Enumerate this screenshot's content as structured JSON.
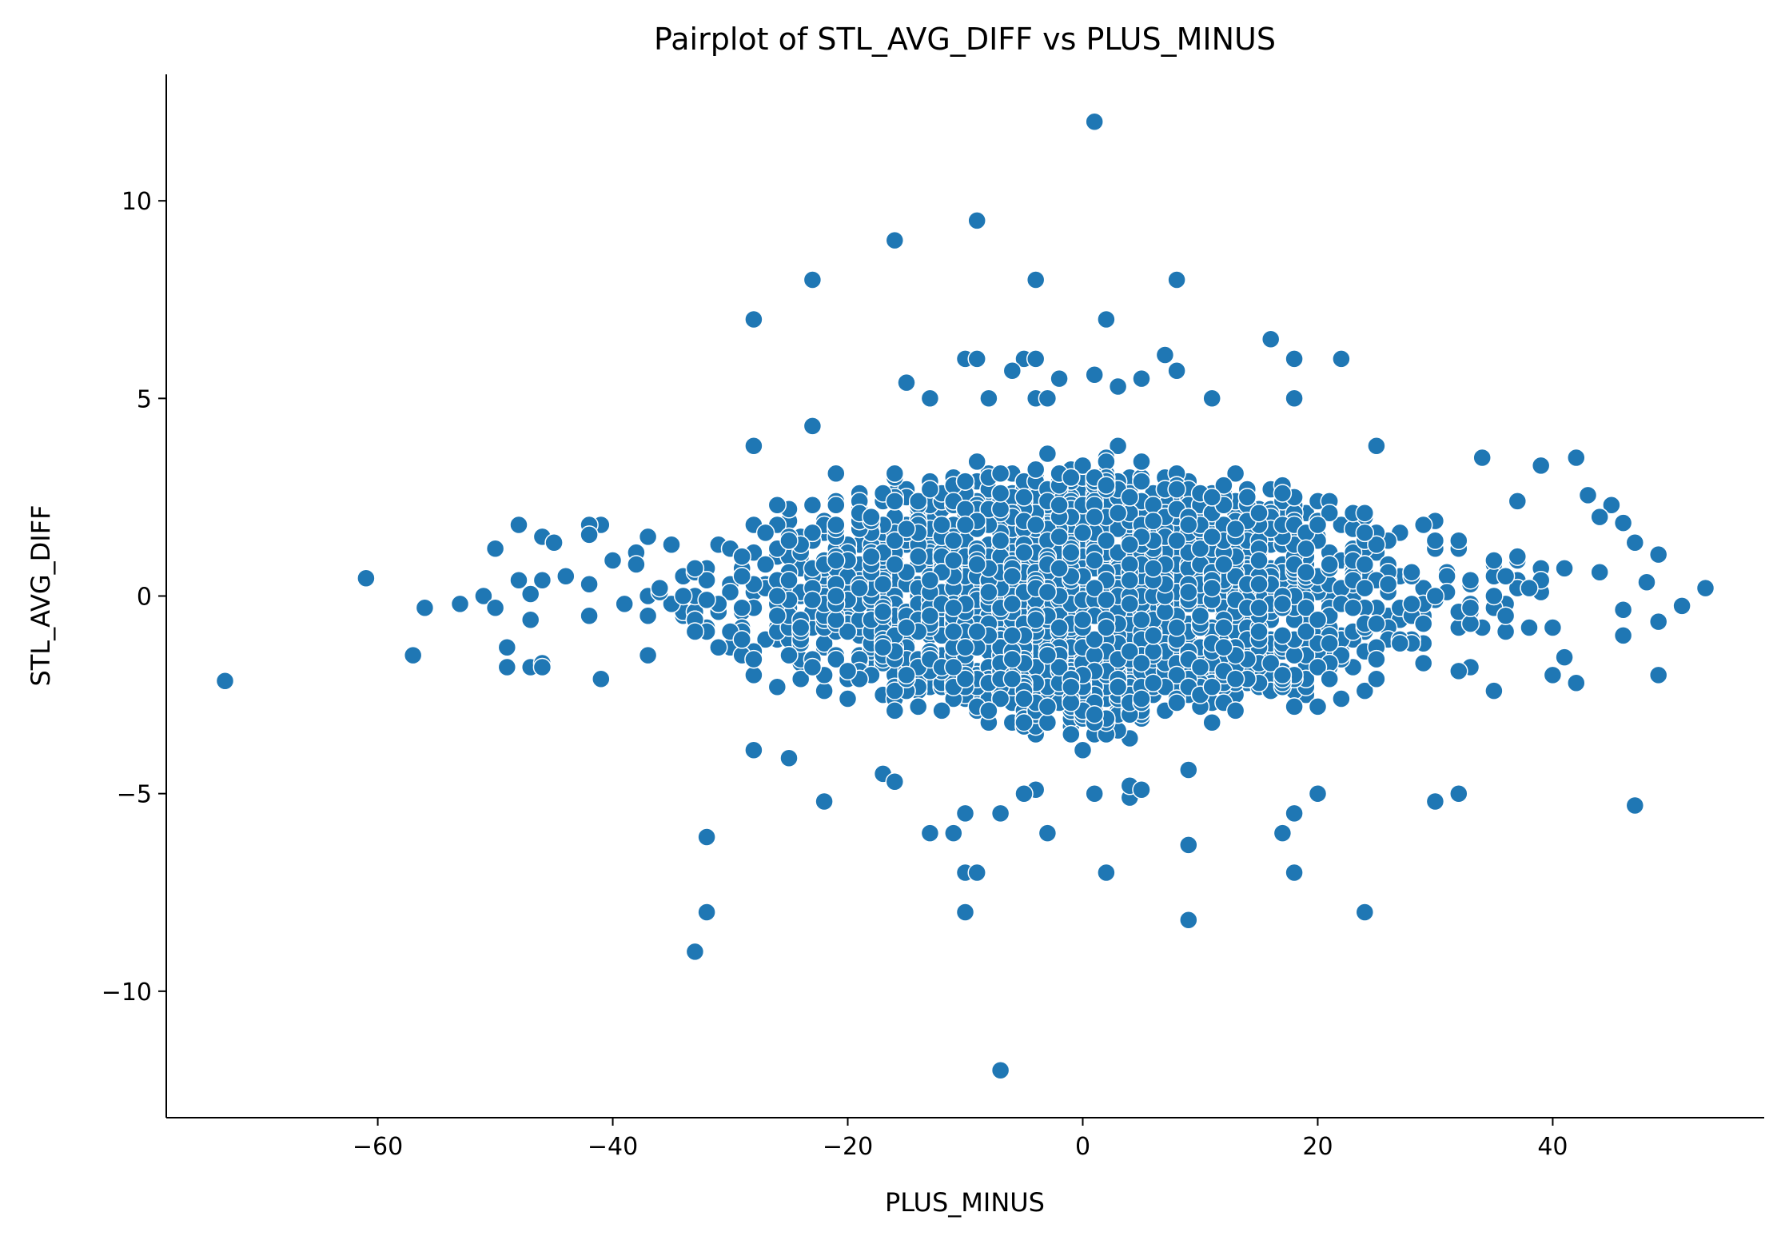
{
  "chart_data": {
    "type": "scatter",
    "title": "Pairplot of STL_AVG_DIFF vs PLUS_MINUS",
    "xlabel": "PLUS_MINUS",
    "ylabel": "STL_AVG_DIFF",
    "xlim": [
      -78,
      58
    ],
    "ylim": [
      -13.2,
      13.2
    ],
    "xticks": [
      -60,
      -40,
      -20,
      0,
      20,
      40
    ],
    "yticks": [
      -10,
      -5,
      0,
      5,
      10
    ],
    "xtick_labels": [
      "−60",
      "−40",
      "−20",
      "0",
      "20",
      "40"
    ],
    "ytick_labels": [
      "−10",
      "−5",
      "0",
      "5",
      "10"
    ],
    "grid": false,
    "legend": "none",
    "color": "#1f77b4",
    "outliers": [
      [
        1,
        12
      ],
      [
        -9,
        9.5
      ],
      [
        -16,
        9
      ],
      [
        -23,
        8
      ],
      [
        -4,
        8
      ],
      [
        8,
        8
      ],
      [
        -28,
        7
      ],
      [
        2,
        7
      ],
      [
        -10,
        6
      ],
      [
        -9,
        6
      ],
      [
        -5,
        6
      ],
      [
        -4,
        6
      ],
      [
        7,
        6.1
      ],
      [
        22,
        6
      ],
      [
        18,
        6
      ],
      [
        16,
        6.5
      ],
      [
        -6,
        5.7
      ],
      [
        8,
        5.7
      ],
      [
        1,
        5.6
      ],
      [
        5,
        5.5
      ],
      [
        -2,
        5.5
      ],
      [
        -15,
        5.4
      ],
      [
        3,
        5.3
      ],
      [
        -13,
        5.0
      ],
      [
        -8,
        5.0
      ],
      [
        -4,
        5.0
      ],
      [
        -3,
        5.0
      ],
      [
        11,
        5.0
      ],
      [
        18,
        5.0
      ],
      [
        -23,
        4.3
      ],
      [
        -28,
        3.8
      ],
      [
        25,
        3.8
      ],
      [
        34,
        3.5
      ],
      [
        42,
        3.5
      ],
      [
        39,
        3.3
      ],
      [
        -73,
        -2.15
      ],
      [
        -61,
        0.45
      ],
      [
        -57,
        -1.5
      ],
      [
        -56,
        -0.3
      ],
      [
        -53,
        -0.2
      ],
      [
        -51,
        0.0
      ],
      [
        -50,
        1.2
      ],
      [
        -50,
        -0.3
      ],
      [
        -49,
        -1.3
      ],
      [
        -49,
        -1.8
      ],
      [
        -48,
        1.8
      ],
      [
        -48,
        0.4
      ],
      [
        -47,
        0.05
      ],
      [
        -47,
        -0.6
      ],
      [
        -47,
        -1.8
      ],
      [
        -46,
        1.5
      ],
      [
        -46,
        0.4
      ],
      [
        -46,
        -1.7
      ],
      [
        -46,
        -1.8
      ],
      [
        -45,
        1.35
      ],
      [
        -44,
        0.5
      ],
      [
        -42,
        1.55
      ],
      [
        -41,
        -2.1
      ],
      [
        -33,
        -9
      ],
      [
        -32,
        -8
      ],
      [
        -32,
        -6.1
      ],
      [
        -28,
        -3.9
      ],
      [
        -25,
        -4.1
      ],
      [
        -22,
        -5.2
      ],
      [
        -17,
        -4.5
      ],
      [
        -16,
        -4.7
      ],
      [
        -13,
        -6
      ],
      [
        -11,
        -6
      ],
      [
        -10,
        -7
      ],
      [
        -10,
        -8
      ],
      [
        -10,
        -5.5
      ],
      [
        -9,
        -7
      ],
      [
        -7,
        -12
      ],
      [
        -7,
        -5.5
      ],
      [
        -3,
        -6
      ],
      [
        -4,
        -4.9
      ],
      [
        -5,
        -5.0
      ],
      [
        1,
        -5
      ],
      [
        2,
        -7
      ],
      [
        4,
        -5.1
      ],
      [
        4,
        -4.8
      ],
      [
        5,
        -4.9
      ],
      [
        9,
        -6.3
      ],
      [
        9,
        -8.2
      ],
      [
        9,
        -4.4
      ],
      [
        18,
        -5.5
      ],
      [
        17,
        -6
      ],
      [
        18,
        -7
      ],
      [
        20,
        -5
      ],
      [
        24,
        -8
      ],
      [
        30,
        -5.2
      ],
      [
        32,
        -5
      ],
      [
        47,
        -5.3
      ],
      [
        49,
        -2.0
      ],
      [
        49,
        -0.65
      ],
      [
        49,
        1.05
      ],
      [
        51,
        -0.25
      ],
      [
        53,
        0.2
      ],
      [
        48,
        0.35
      ],
      [
        47,
        1.35
      ],
      [
        46,
        1.85
      ],
      [
        46,
        -0.35
      ],
      [
        45,
        2.3
      ],
      [
        44,
        2.0
      ],
      [
        43,
        2.55
      ],
      [
        42,
        -2.2
      ],
      [
        41,
        -1.55
      ],
      [
        40,
        -2.0
      ],
      [
        37,
        2.4
      ],
      [
        35,
        -2.4
      ]
    ],
    "dense_cloud": {
      "x_range": [
        -43,
        48
      ],
      "y_core_halfwidth_at_0": 3.2,
      "count": 2400
    }
  }
}
